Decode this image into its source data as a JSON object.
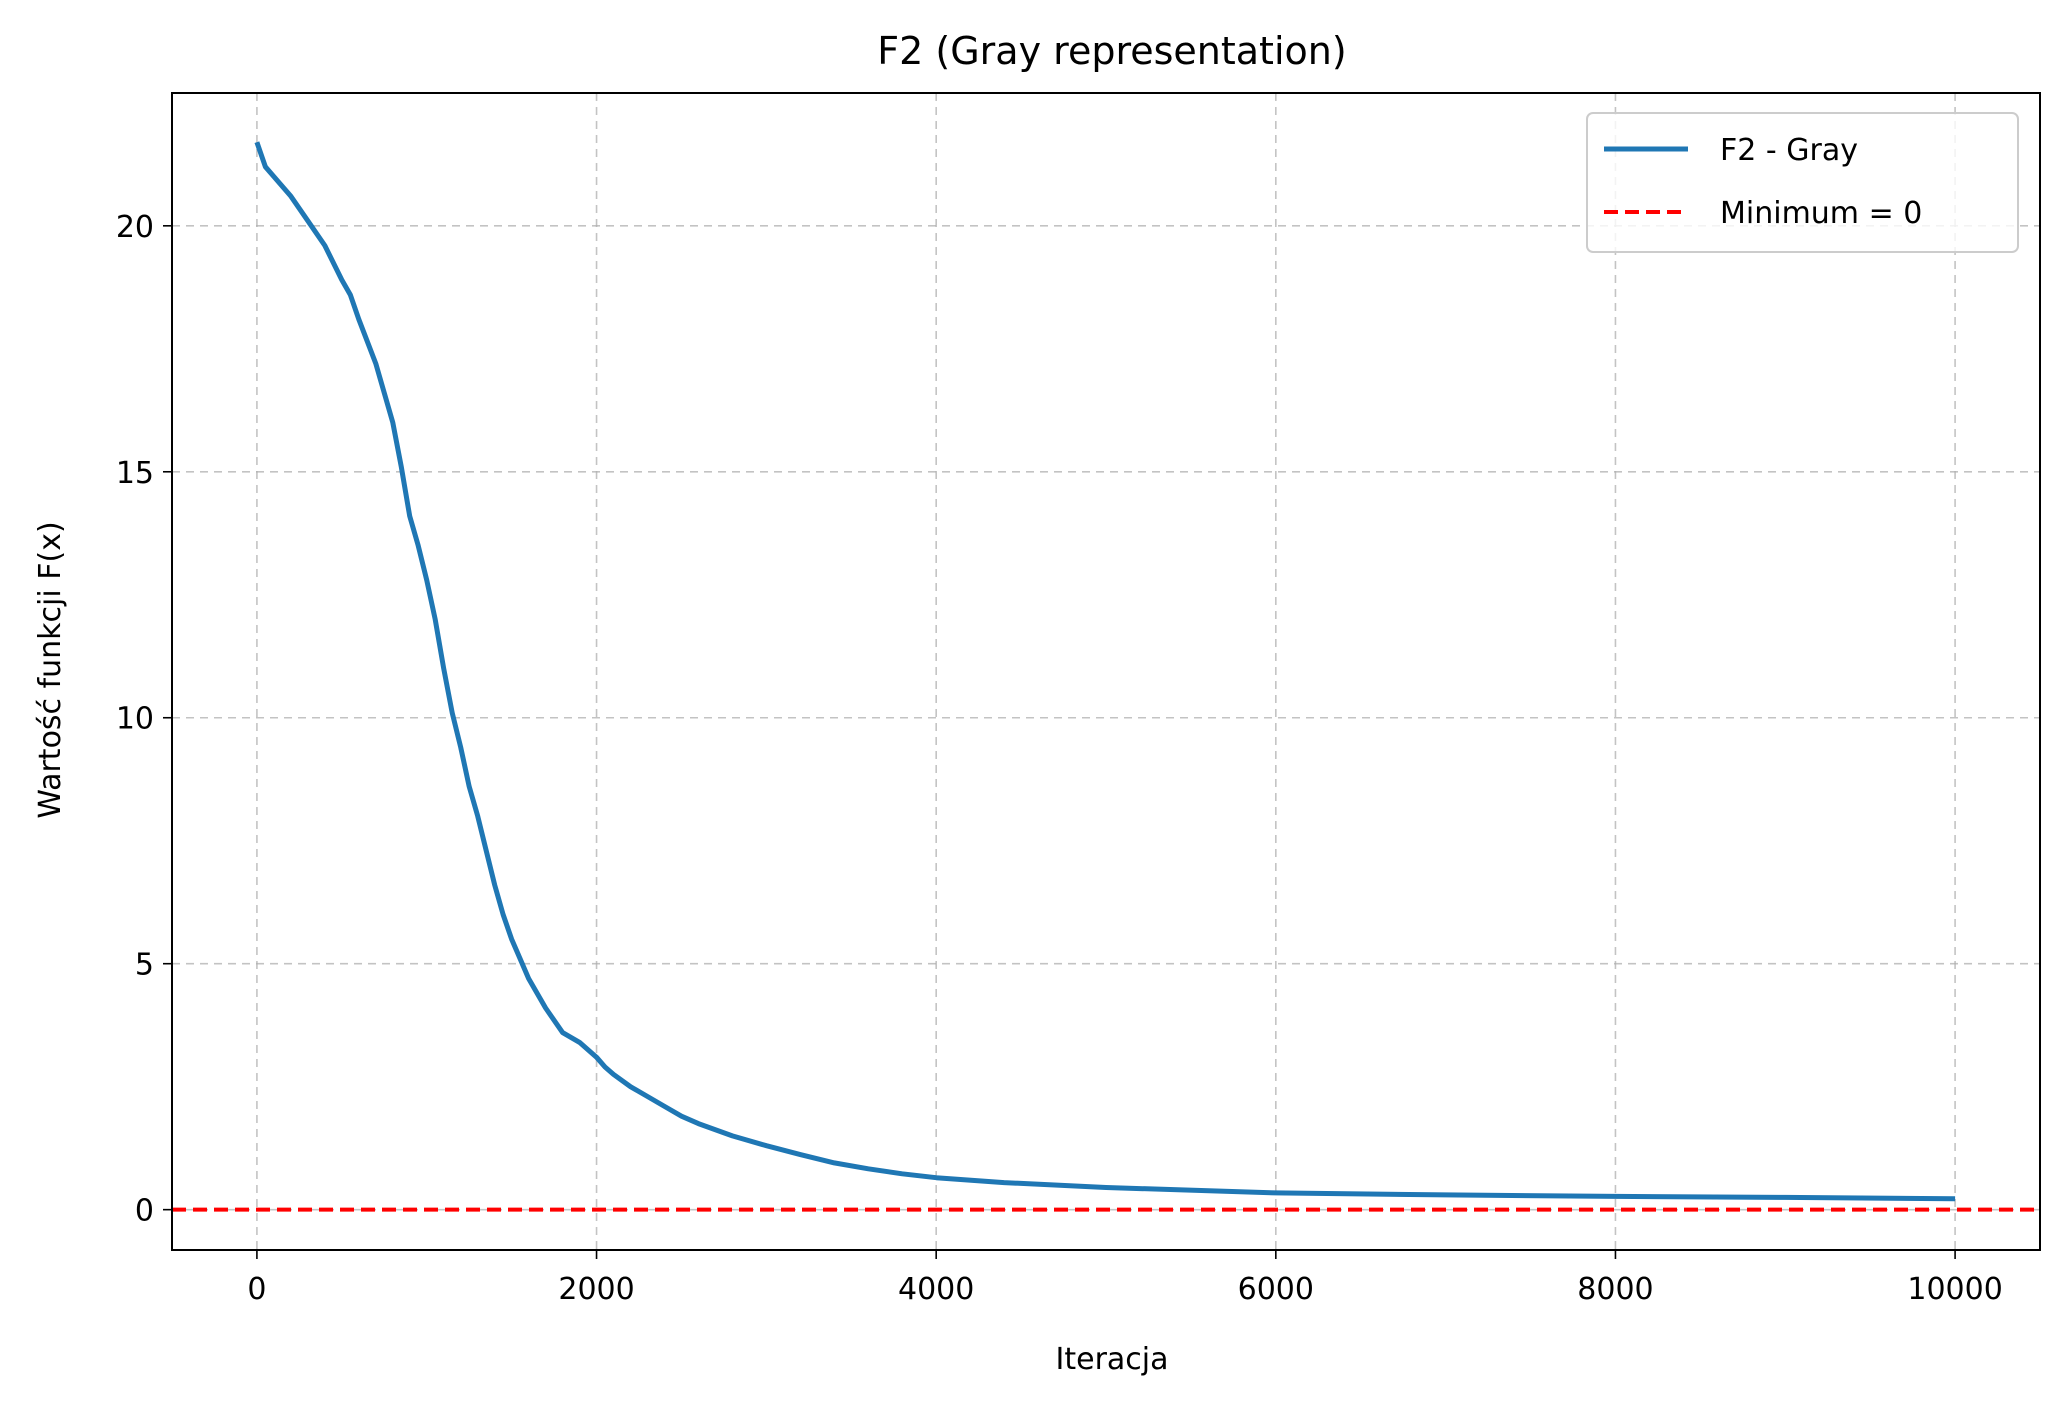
{
  "chart_data": {
    "type": "line",
    "title": "F2 (Gray representation)",
    "xlabel": "Iteracja",
    "ylabel": "Wartość funkcji F(x)",
    "xlim": [
      -500,
      10500
    ],
    "ylim": [
      -0.82,
      22.7
    ],
    "xticks": [
      0,
      2000,
      4000,
      6000,
      8000,
      10000
    ],
    "xtick_labels": [
      "0",
      "2000",
      "4000",
      "6000",
      "8000",
      "10000"
    ],
    "yticks": [
      0,
      5,
      10,
      15,
      20
    ],
    "ytick_labels": [
      "0",
      "5",
      "10",
      "15",
      "20"
    ],
    "grid": true,
    "legend_position": "top-right",
    "series": [
      {
        "name": "F2 - Gray",
        "color": "#1f77b4",
        "style": "solid",
        "x": [
          0,
          50,
          100,
          200,
          300,
          400,
          500,
          550,
          600,
          700,
          750,
          800,
          850,
          900,
          950,
          1000,
          1050,
          1100,
          1150,
          1200,
          1250,
          1300,
          1350,
          1400,
          1450,
          1500,
          1550,
          1600,
          1650,
          1700,
          1800,
          1900,
          2000,
          2050,
          2100,
          2200,
          2300,
          2400,
          2500,
          2600,
          2800,
          3000,
          3200,
          3400,
          3600,
          3800,
          4000,
          4400,
          5000,
          6000,
          7000,
          8000,
          9000,
          10000
        ],
        "y": [
          21.7,
          21.2,
          21.0,
          20.6,
          20.1,
          19.6,
          18.9,
          18.6,
          18.1,
          17.2,
          16.6,
          16.0,
          15.1,
          14.1,
          13.5,
          12.8,
          12.0,
          11.0,
          10.1,
          9.4,
          8.6,
          8.0,
          7.3,
          6.6,
          6.0,
          5.5,
          5.1,
          4.7,
          4.4,
          4.1,
          3.6,
          3.4,
          3.1,
          2.9,
          2.75,
          2.5,
          2.3,
          2.1,
          1.9,
          1.75,
          1.5,
          1.3,
          1.12,
          0.95,
          0.83,
          0.73,
          0.65,
          0.55,
          0.45,
          0.34,
          0.3,
          0.27,
          0.25,
          0.22
        ]
      },
      {
        "name": "Minimum = 0",
        "color": "#ff0000",
        "style": "dashed",
        "hline": 0
      }
    ]
  }
}
